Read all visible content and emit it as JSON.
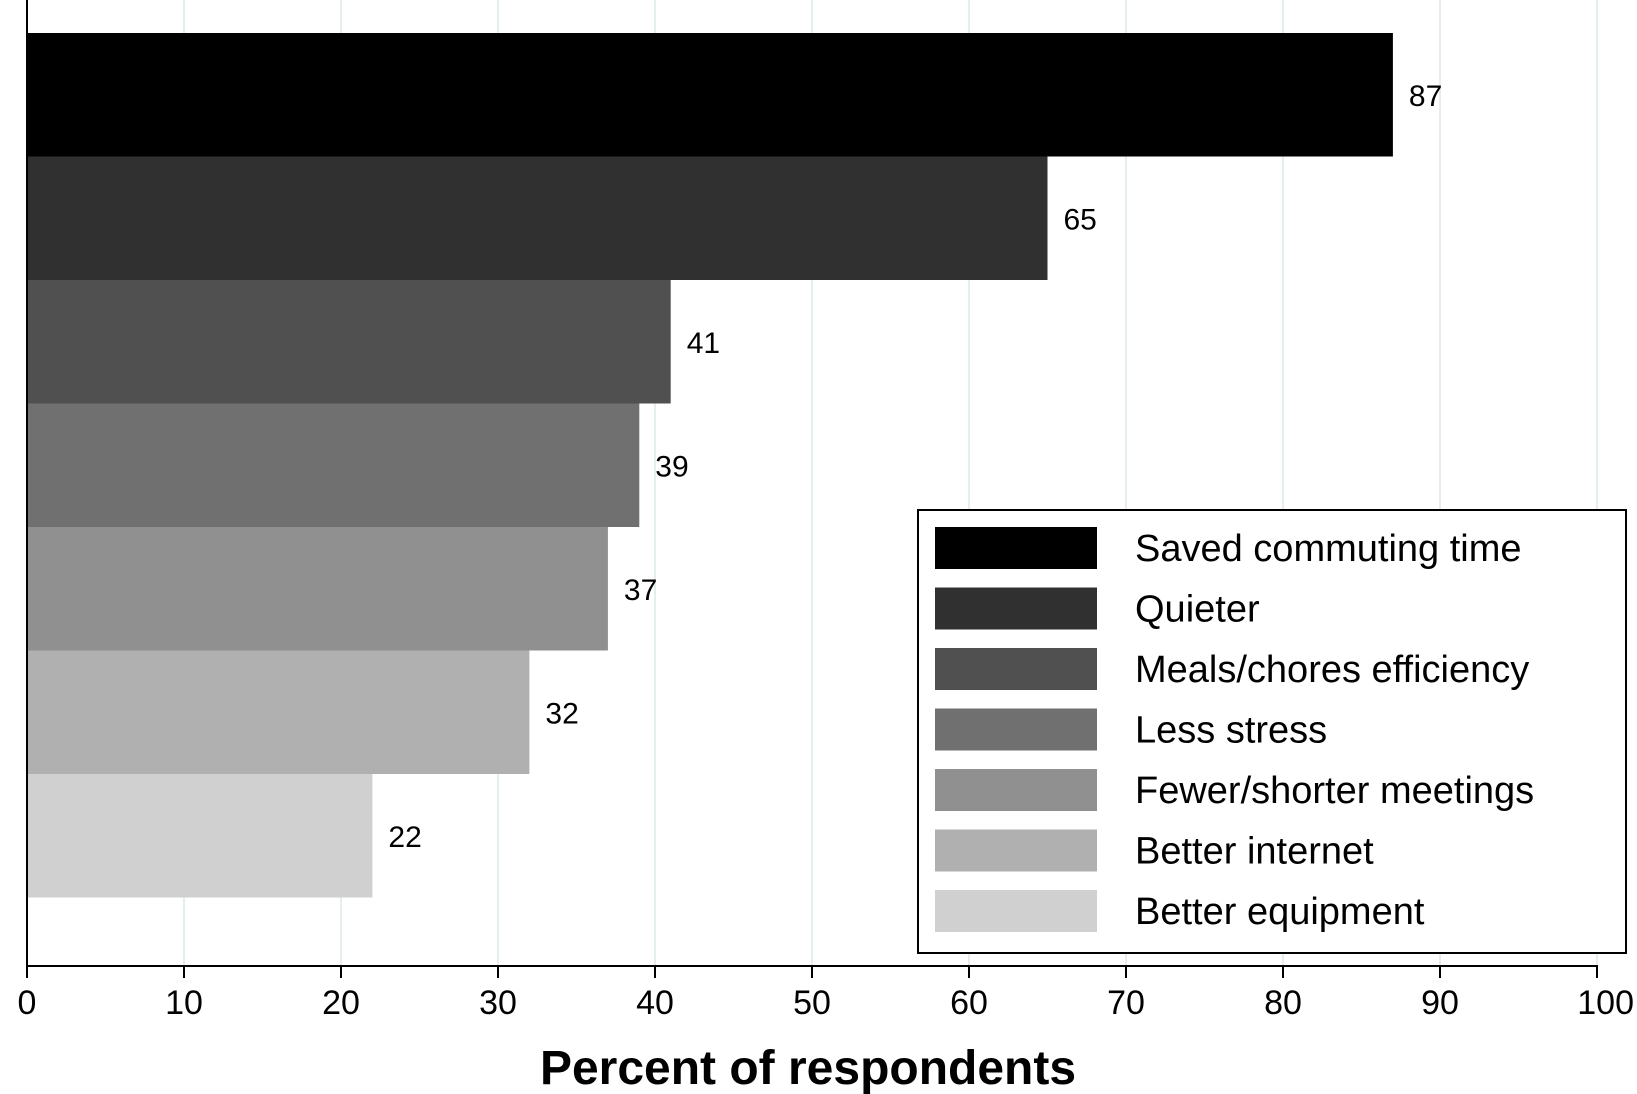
{
  "chart_data": {
    "type": "bar",
    "orientation": "horizontal",
    "title": "",
    "xlabel": "Percent of respondents",
    "ylabel": "",
    "xlim": [
      0,
      100
    ],
    "x_ticks": [
      0,
      10,
      20,
      30,
      40,
      50,
      60,
      70,
      80,
      90,
      100
    ],
    "grid": "vertical",
    "grid_color": "#e5eeee",
    "legend_position": "bottom-right",
    "categories": [
      "Saved commuting time",
      "Quieter",
      "Meals/chores efficiency",
      "Less stress",
      "Fewer/shorter meetings",
      "Better internet",
      "Better equipment"
    ],
    "values": [
      87,
      65,
      41,
      39,
      37,
      32,
      22
    ],
    "value_labels": [
      "87",
      "65",
      "41",
      "39",
      "37",
      "32",
      "22"
    ],
    "colors": [
      "#000000",
      "#303030",
      "#505050",
      "#707070",
      "#909090",
      "#b0b0b0",
      "#d0d0d0"
    ]
  }
}
